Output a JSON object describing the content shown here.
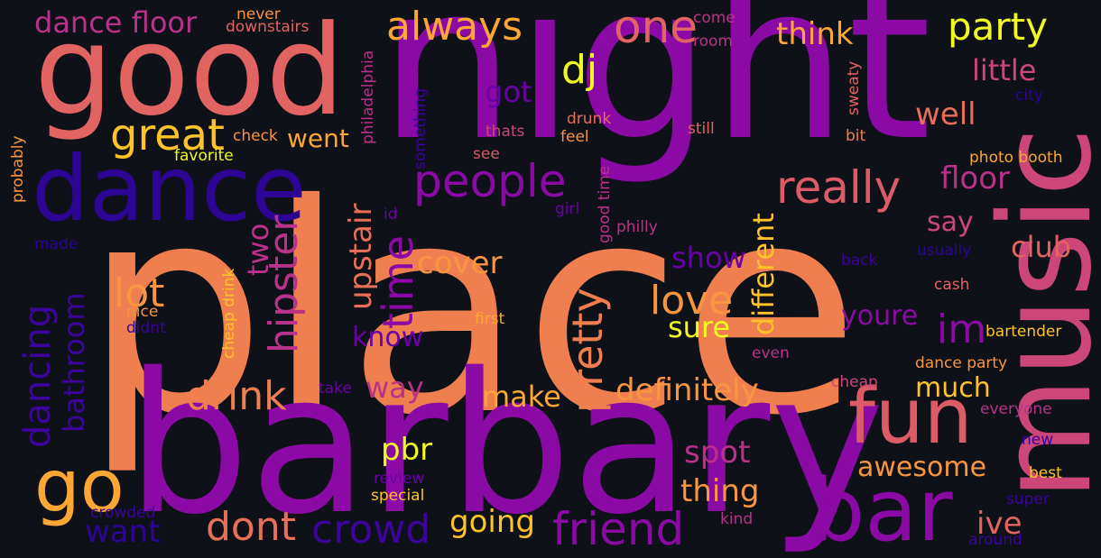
{
  "palette": {
    "background": "#0e1117",
    "purple": "#8b0aa5",
    "violet": "#6a00a8",
    "indigo": "#2c0594",
    "magenta": "#b83289",
    "pink": "#cc4778",
    "rose": "#db5c68",
    "coral": "#e76f5a",
    "salmon": "#f07f4f",
    "orange": "#f89540",
    "amber": "#fca636",
    "gold": "#fdc328",
    "yellow": "#f0f921"
  },
  "words": [
    {
      "text": "place",
      "color": "#f07f4f"
    },
    {
      "text": "night",
      "color": "#8b0aa5"
    },
    {
      "text": "barbary",
      "color": "#8b0aa5"
    },
    {
      "text": "good",
      "color": "#e16462"
    },
    {
      "text": "music",
      "color": "#cc4778"
    },
    {
      "text": "dance",
      "color": "#2c0594"
    },
    {
      "text": "bar",
      "color": "#8b0aa5"
    },
    {
      "text": "fun",
      "color": "#db5c68"
    },
    {
      "text": "go",
      "color": "#fca636"
    },
    {
      "text": "people",
      "color": "#8b0aa5"
    },
    {
      "text": "really",
      "color": "#db5c68"
    },
    {
      "text": "great",
      "color": "#fdc328"
    },
    {
      "text": "one",
      "color": "#e16462"
    },
    {
      "text": "party",
      "color": "#f0f921"
    },
    {
      "text": "dj",
      "color": "#f0f921"
    },
    {
      "text": "always",
      "color": "#fca636"
    },
    {
      "text": "dance floor",
      "color": "#b83289"
    },
    {
      "text": "drink",
      "color": "#f07f4f"
    },
    {
      "text": "dont",
      "color": "#e76f5a"
    },
    {
      "text": "crowd",
      "color": "#3b049a"
    },
    {
      "text": "friend",
      "color": "#8b0aa5"
    },
    {
      "text": "hipster",
      "color": "#b83289"
    },
    {
      "text": "dancing",
      "color": "#3b049a"
    },
    {
      "text": "time",
      "color": "#8b0aa5"
    },
    {
      "text": "pretty",
      "color": "#f07f4f"
    },
    {
      "text": "love",
      "color": "#f89540"
    },
    {
      "text": "definitely",
      "color": "#f89540"
    },
    {
      "text": "lot",
      "color": "#f89540"
    },
    {
      "text": "im",
      "color": "#8b0aa5"
    },
    {
      "text": "pbr",
      "color": "#f0f921"
    },
    {
      "text": "well",
      "color": "#e76f5a"
    },
    {
      "text": "floor",
      "color": "#b83289"
    },
    {
      "text": "little",
      "color": "#cc4778"
    },
    {
      "text": "think",
      "color": "#fca636"
    },
    {
      "text": "went",
      "color": "#fca636"
    },
    {
      "text": "got",
      "color": "#6a00a8"
    },
    {
      "text": "two",
      "color": "#b83289"
    },
    {
      "text": "upstair",
      "color": "#e76f5a"
    },
    {
      "text": "cover",
      "color": "#f89540"
    },
    {
      "text": "know",
      "color": "#6a00a8"
    },
    {
      "text": "show",
      "color": "#6a00a8"
    },
    {
      "text": "sure",
      "color": "#f0f921"
    },
    {
      "text": "different",
      "color": "#fdc328"
    },
    {
      "text": "youre",
      "color": "#8b0aa5"
    },
    {
      "text": "club",
      "color": "#e16462"
    },
    {
      "text": "say",
      "color": "#cc4778"
    },
    {
      "text": "way",
      "color": "#b83289"
    },
    {
      "text": "make",
      "color": "#fca636"
    },
    {
      "text": "much",
      "color": "#fdc328"
    },
    {
      "text": "bathroom",
      "color": "#3b049a"
    },
    {
      "text": "awesome",
      "color": "#f89540"
    },
    {
      "text": "spot",
      "color": "#b83289"
    },
    {
      "text": "thing",
      "color": "#f89540"
    },
    {
      "text": "going",
      "color": "#fdc328"
    },
    {
      "text": "want",
      "color": "#2c0594"
    },
    {
      "text": "ive",
      "color": "#e16462"
    },
    {
      "text": "never",
      "color": "#f89540"
    },
    {
      "text": "downstairs",
      "color": "#e16462"
    },
    {
      "text": "come",
      "color": "#b83289"
    },
    {
      "text": "room",
      "color": "#b83289"
    },
    {
      "text": "philadelphia",
      "color": "#b83289"
    },
    {
      "text": "city",
      "color": "#2c0594"
    },
    {
      "text": "sweaty",
      "color": "#e16462"
    },
    {
      "text": "probably",
      "color": "#f89540"
    },
    {
      "text": "check",
      "color": "#f89540"
    },
    {
      "text": "favorite",
      "color": "#f0f921"
    },
    {
      "text": "thats",
      "color": "#cc4778"
    },
    {
      "text": "drunk",
      "color": "#e76f5a"
    },
    {
      "text": "feel",
      "color": "#f89540"
    },
    {
      "text": "still",
      "color": "#e16462"
    },
    {
      "text": "bit",
      "color": "#f07f4f"
    },
    {
      "text": "something",
      "color": "#3b049a"
    },
    {
      "text": "see",
      "color": "#db5c68"
    },
    {
      "text": "good time",
      "color": "#b83289"
    },
    {
      "text": "photo booth",
      "color": "#fca636"
    },
    {
      "text": "id",
      "color": "#6a00a8"
    },
    {
      "text": "girl",
      "color": "#6a00a8"
    },
    {
      "text": "made",
      "color": "#2c0594"
    },
    {
      "text": "cheap drink",
      "color": "#fdc328"
    },
    {
      "text": "nice",
      "color": "#f89540"
    },
    {
      "text": "didnt",
      "color": "#3b049a"
    },
    {
      "text": "philly",
      "color": "#b83289"
    },
    {
      "text": "usually",
      "color": "#2c0594"
    },
    {
      "text": "back",
      "color": "#3b049a"
    },
    {
      "text": "cash",
      "color": "#e16462"
    },
    {
      "text": "first",
      "color": "#fca636"
    },
    {
      "text": "bartender",
      "color": "#fdc328"
    },
    {
      "text": "even",
      "color": "#b83289"
    },
    {
      "text": "dance party",
      "color": "#f89540"
    },
    {
      "text": "take",
      "color": "#6a00a8"
    },
    {
      "text": "cheap",
      "color": "#cc4778"
    },
    {
      "text": "everyone",
      "color": "#b83289"
    },
    {
      "text": "new",
      "color": "#3b049a"
    },
    {
      "text": "best",
      "color": "#fdc328"
    },
    {
      "text": "super",
      "color": "#3b049a"
    },
    {
      "text": "review",
      "color": "#6a00a8"
    },
    {
      "text": "special",
      "color": "#fdc328"
    },
    {
      "text": "crowded",
      "color": "#3b049a"
    },
    {
      "text": "kind",
      "color": "#b83289"
    },
    {
      "text": "around",
      "color": "#3b049a"
    }
  ]
}
